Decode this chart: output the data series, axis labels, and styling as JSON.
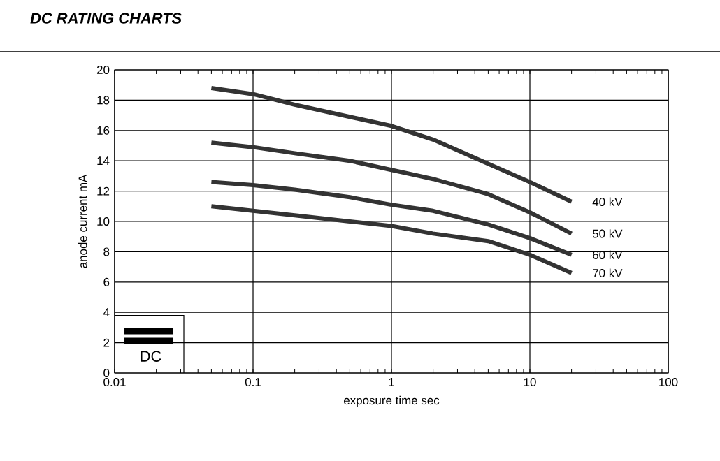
{
  "chart_data": {
    "type": "line",
    "title": "DC RATING CHARTS",
    "xlabel": "exposure time sec",
    "ylabel": "anode current mA",
    "log": "x",
    "grid": true,
    "legend": false,
    "marker": "none",
    "line_style": "solid",
    "xlim": [
      0.01,
      100
    ],
    "xticks": [
      0.01,
      0.1,
      1,
      10,
      100
    ],
    "ylim": [
      0,
      20
    ],
    "yticks": [
      0,
      2,
      4,
      6,
      8,
      10,
      12,
      14,
      16,
      18,
      20
    ],
    "annotations": [
      "DC"
    ],
    "x": [
      0.05,
      0.1,
      0.2,
      0.5,
      1,
      2,
      5,
      10,
      20
    ],
    "series": [
      {
        "name": "40 kV",
        "color": "#333333",
        "values": [
          18.8,
          18.4,
          17.7,
          16.9,
          16.3,
          15.4,
          13.8,
          12.6,
          11.3
        ]
      },
      {
        "name": "50 kV",
        "color": "#333333",
        "values": [
          15.2,
          14.9,
          14.5,
          14.0,
          13.4,
          12.8,
          11.8,
          10.6,
          9.2
        ]
      },
      {
        "name": "60 kV",
        "color": "#333333",
        "values": [
          12.6,
          12.4,
          12.1,
          11.6,
          11.1,
          10.7,
          9.8,
          8.9,
          7.8
        ]
      },
      {
        "name": "70 kV",
        "color": "#333333",
        "values": [
          11.0,
          10.7,
          10.4,
          10.0,
          9.7,
          9.2,
          8.7,
          7.8,
          6.6
        ]
      }
    ]
  }
}
